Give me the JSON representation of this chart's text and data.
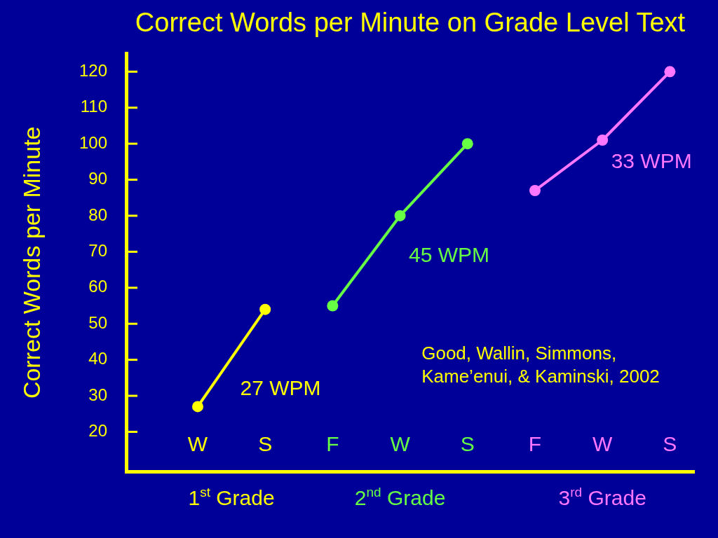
{
  "chart_data": {
    "type": "line",
    "title": "Correct Words per Minute on Grade Level Text",
    "ylabel": "Correct Words per Minute",
    "categories": [
      "W",
      "S",
      "F",
      "W",
      "S",
      "F",
      "W",
      "S"
    ],
    "series": [
      {
        "name": "1$^{st}$ Grade",
        "color": "#ffff00",
        "values": [
          27,
          54,
          null,
          null,
          null,
          null,
          null,
          null
        ]
      },
      {
        "name": "2$^{nd}$ Grade",
        "color": "#66ff44",
        "values": [
          null,
          null,
          55,
          80,
          100,
          null,
          null,
          null
        ]
      },
      {
        "name": "3$^{rd}$ Grade",
        "color": "#ff77ff",
        "values": [
          null,
          null,
          null,
          null,
          null,
          87,
          101,
          120
        ]
      }
    ],
    "ylim": [
      9,
      125
    ],
    "yticks": [
      20,
      30,
      40,
      50,
      60,
      70,
      80,
      90,
      100,
      110,
      120
    ],
    "marker": "circle",
    "line_style": "solid",
    "annotations": [
      "27 WPM",
      "45 WPM",
      "33 WPM",
      "Good, Wallin, Simmons,\nKame’enui, & Kaminski, 2002"
    ]
  }
}
